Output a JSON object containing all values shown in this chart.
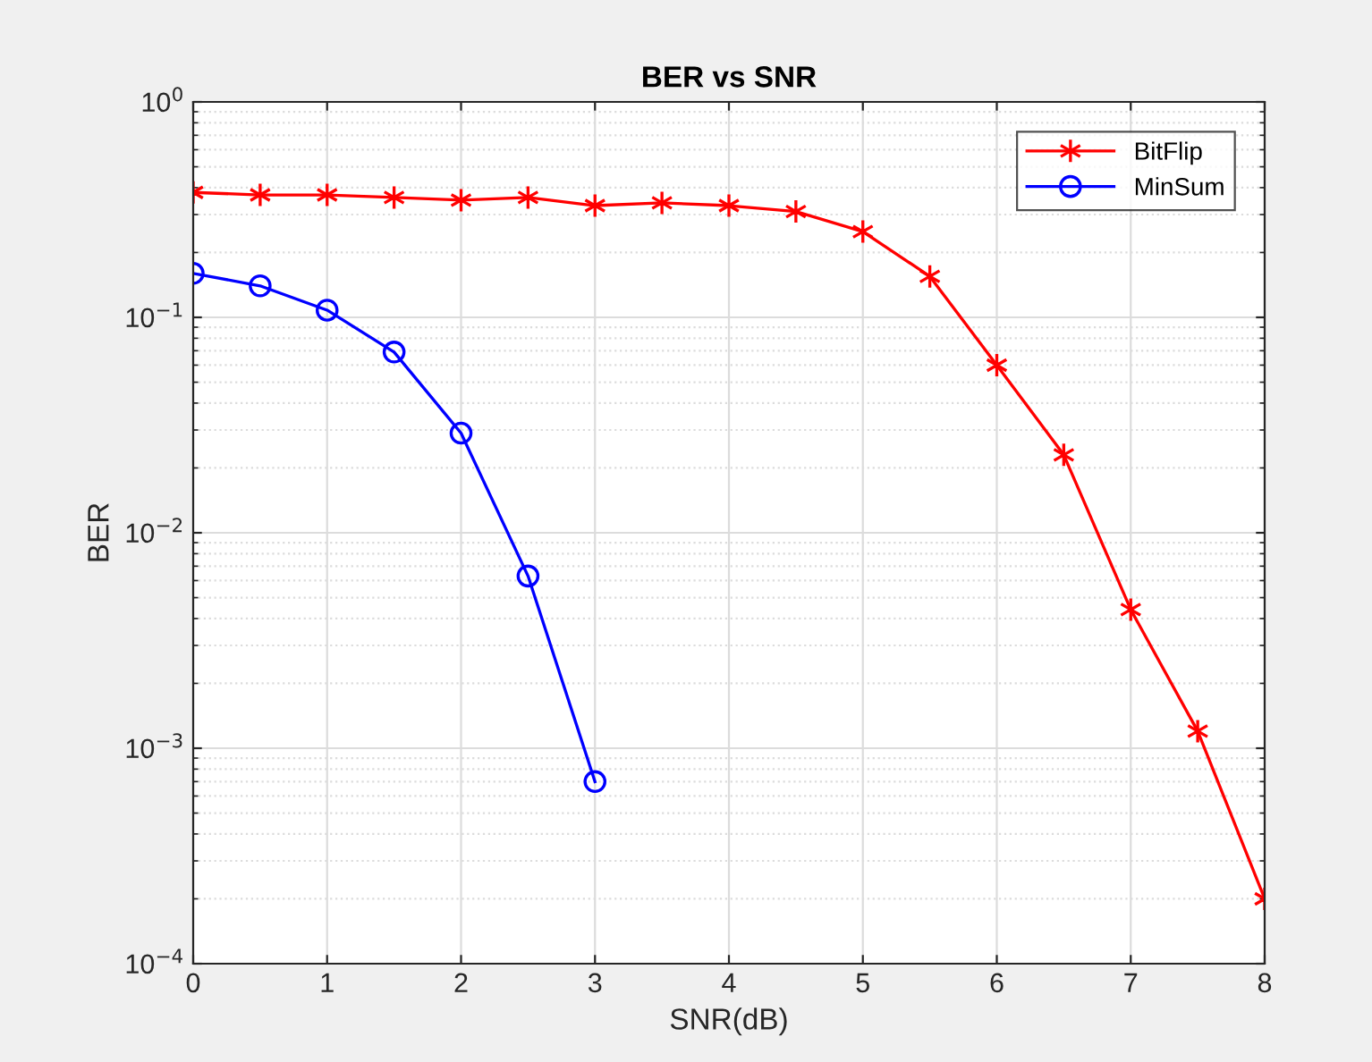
{
  "chart_data": {
    "type": "line",
    "title": "BER vs SNR",
    "xlabel": "SNR(dB)",
    "ylabel": "BER",
    "log": "y",
    "grid": true,
    "legend": "top right",
    "xlim": [
      0,
      8
    ],
    "xticks": [
      0,
      1,
      2,
      3,
      4,
      5,
      6,
      7,
      8
    ],
    "ylim": [
      0.0001,
      1
    ],
    "yticks": [
      {
        "value": 0.0001,
        "label": "10$^{−4}$"
      },
      {
        "value": 0.001,
        "label": "10$^{−3}$"
      },
      {
        "value": 0.01,
        "label": "10$^{−2}$"
      },
      {
        "value": 0.1,
        "label": "10$^{−1}$"
      },
      {
        "value": 1,
        "label": "10$^{0}$"
      }
    ],
    "series": [
      {
        "name": "BitFlip",
        "color": "#ff0000",
        "marker": "cross",
        "x": [
          0,
          0.5,
          1,
          1.5,
          2,
          2.5,
          3,
          3.5,
          4,
          4.5,
          5,
          5.5,
          6,
          6.5,
          7,
          7.5,
          8
        ],
        "values": [
          0.38,
          0.37,
          0.37,
          0.36,
          0.35,
          0.36,
          0.33,
          0.34,
          0.33,
          0.31,
          0.25,
          0.155,
          0.06,
          0.023,
          0.0044,
          0.0012,
          0.0002
        ]
      },
      {
        "name": "MinSum",
        "color": "#0000ff",
        "marker": "circle",
        "x": [
          0,
          0.5,
          1,
          1.5,
          2,
          2.5,
          3
        ],
        "values": [
          0.16,
          0.14,
          0.108,
          0.069,
          0.029,
          0.0063,
          0.0007
        ]
      }
    ]
  }
}
